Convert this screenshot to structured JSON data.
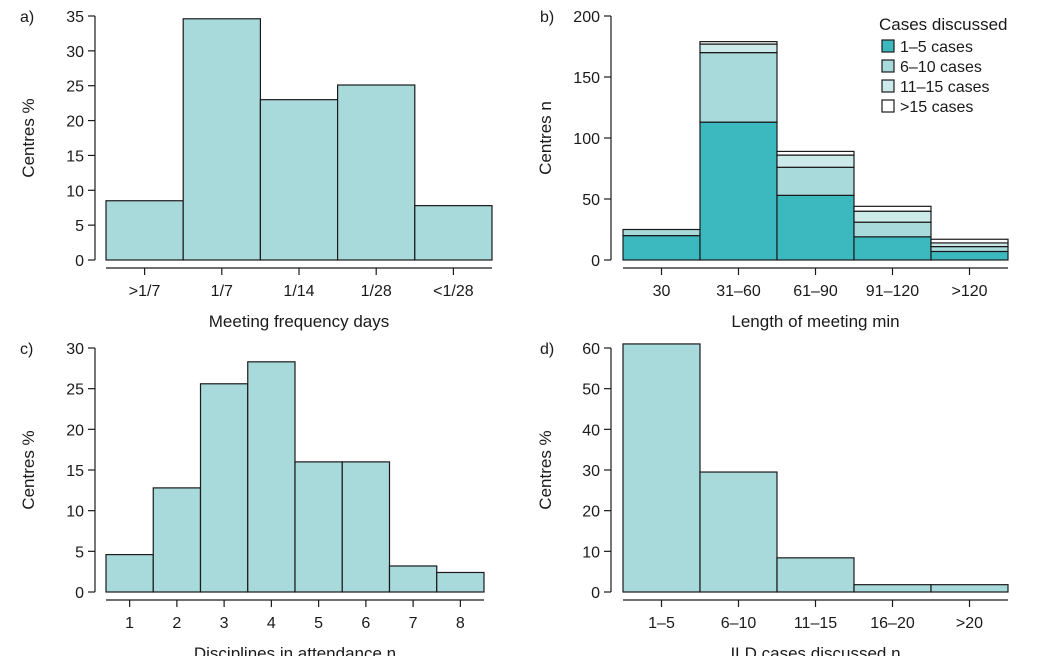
{
  "colors": {
    "bar": "#a8dadb",
    "seg_1_5": "#3bb9bf",
    "seg_6_10": "#a8dadb",
    "seg_11_15": "#cdeaeb",
    "seg_gt15": "#ffffff",
    "edge": "#1a1a1a"
  },
  "chart_data": [
    {
      "panel": "a)",
      "type": "bar",
      "ylabel": "Centres %",
      "xlabel": "Meeting frequency days",
      "ylim": [
        0,
        35
      ],
      "yticks": [
        "0",
        "5",
        "10",
        "15",
        "20",
        "25",
        "30",
        "35"
      ],
      "categories": [
        ">1/7",
        "1/7",
        "1/14",
        "1/28",
        "<1/28"
      ],
      "values": [
        8.5,
        34.6,
        23,
        25.1,
        7.8
      ]
    },
    {
      "panel": "b)",
      "type": "bar",
      "stacked": true,
      "ylabel": "Centres n",
      "xlabel": "Length of meeting min",
      "ylim": [
        0,
        200
      ],
      "yticks": [
        "0",
        "50",
        "100",
        "150",
        "200"
      ],
      "categories": [
        "30",
        "31–60",
        "61–90",
        "91–120",
        ">120"
      ],
      "legend_title": "Cases discussed",
      "legend_position": "top-right",
      "series": [
        {
          "name": "1–5 cases",
          "color_key": "seg_1_5",
          "values": [
            20,
            113,
            53,
            19,
            7
          ]
        },
        {
          "name": "6–10 cases",
          "color_key": "seg_6_10",
          "values": [
            5,
            57,
            23,
            12,
            4
          ]
        },
        {
          "name": "11–15 cases",
          "color_key": "seg_11_15",
          "values": [
            0,
            7,
            10,
            9,
            3
          ]
        },
        {
          "name": ">15 cases",
          "color_key": "seg_gt15",
          "values": [
            0,
            2,
            3,
            4,
            3
          ]
        }
      ]
    },
    {
      "panel": "c)",
      "type": "bar",
      "ylabel": "Centres %",
      "xlabel": "Disciplines in attendance n",
      "ylim": [
        0,
        30
      ],
      "yticks": [
        "0",
        "5",
        "10",
        "15",
        "20",
        "25",
        "30"
      ],
      "categories": [
        "1",
        "2",
        "3",
        "4",
        "5",
        "6",
        "7",
        "8"
      ],
      "values": [
        4.6,
        12.8,
        25.6,
        28.3,
        16,
        16,
        3.2,
        2.4
      ]
    },
    {
      "panel": "d)",
      "type": "bar",
      "ylabel": "Centres %",
      "xlabel": "ILD cases discussed n",
      "ylim": [
        0,
        60
      ],
      "yticks": [
        "0",
        "10",
        "20",
        "30",
        "40",
        "50",
        "60"
      ],
      "categories": [
        "1–5",
        "6–10",
        "11–15",
        "16–20",
        ">20"
      ],
      "values": [
        61,
        29.5,
        8.4,
        1.8,
        1.8
      ]
    }
  ]
}
